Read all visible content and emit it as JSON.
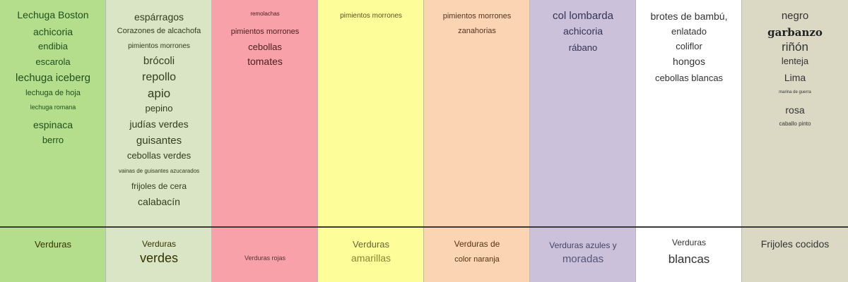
{
  "columns": [
    {
      "id": "greens-light",
      "color": "#b5de8c",
      "items": [
        {
          "text": "Lechuga Boston"
        },
        {
          "text": "achicoria"
        },
        {
          "text": "endibia"
        },
        {
          "text": "escarola"
        },
        {
          "text": "lechuga iceberg"
        },
        {
          "text": "lechuga de hoja"
        },
        {
          "text": "lechuga romana"
        },
        {
          "text": "espinaca"
        },
        {
          "text": "berro"
        }
      ],
      "category_lines": [
        "Verduras"
      ]
    },
    {
      "id": "greens",
      "color": "#d9e5c4",
      "items": [
        {
          "text": "espárragos"
        },
        {
          "text": "Corazones de alcachofa"
        },
        {
          "text": "pimientos morrones"
        },
        {
          "text": "brócoli"
        },
        {
          "text": "repollo"
        },
        {
          "text": "apio"
        },
        {
          "text": "pepino"
        },
        {
          "text": "judías verdes"
        },
        {
          "text": "guisantes"
        },
        {
          "text": "cebollas verdes"
        },
        {
          "text": "vainas de guisantes azucarados"
        },
        {
          "text": "frijoles de cera"
        },
        {
          "text": "calabacín"
        }
      ],
      "category_lines": [
        "Verduras",
        "verdes"
      ]
    },
    {
      "id": "red",
      "color": "#f9a1a8",
      "items": [
        {
          "text": "remolachas"
        },
        {
          "text": "pimientos morrones"
        },
        {
          "text": "cebollas"
        },
        {
          "text": "tomates"
        }
      ],
      "category_lines": [
        "Verduras rojas"
      ]
    },
    {
      "id": "yellow",
      "color": "#fdfd9a",
      "items": [
        {
          "text": "pimientos morrones"
        }
      ],
      "category_lines": [
        "Verduras",
        "amarillas"
      ]
    },
    {
      "id": "orange",
      "color": "#fbd4b4",
      "items": [
        {
          "text": "pimientos morrones"
        },
        {
          "text": "zanahorias"
        }
      ],
      "category_lines": [
        "Verduras de",
        "color naranja"
      ]
    },
    {
      "id": "purple",
      "color": "#ccc1db",
      "items": [
        {
          "text": "col lombarda"
        },
        {
          "text": "achicoria"
        },
        {
          "text": "rábano"
        }
      ],
      "category_lines": [
        "Verduras azules y",
        "moradas"
      ]
    },
    {
      "id": "white",
      "color": "#ffffff",
      "items": [
        {
          "text": "brotes de bambú,"
        },
        {
          "text": "enlatado"
        },
        {
          "text": "coliflor"
        },
        {
          "text": "hongos"
        },
        {
          "text": "cebollas blancas"
        }
      ],
      "category_lines": [
        "Verduras",
        "blancas"
      ]
    },
    {
      "id": "beans",
      "color": "#dbd9c4",
      "items": [
        {
          "text": "negro"
        },
        {
          "text": "garbanzo"
        },
        {
          "text": "riñón"
        },
        {
          "text": "lenteja"
        },
        {
          "text": "Lima"
        },
        {
          "text": "marina de guerra"
        },
        {
          "text": "rosa"
        },
        {
          "text": "caballo pinto"
        }
      ],
      "category_lines": [
        "Frijoles cocidos"
      ]
    }
  ]
}
